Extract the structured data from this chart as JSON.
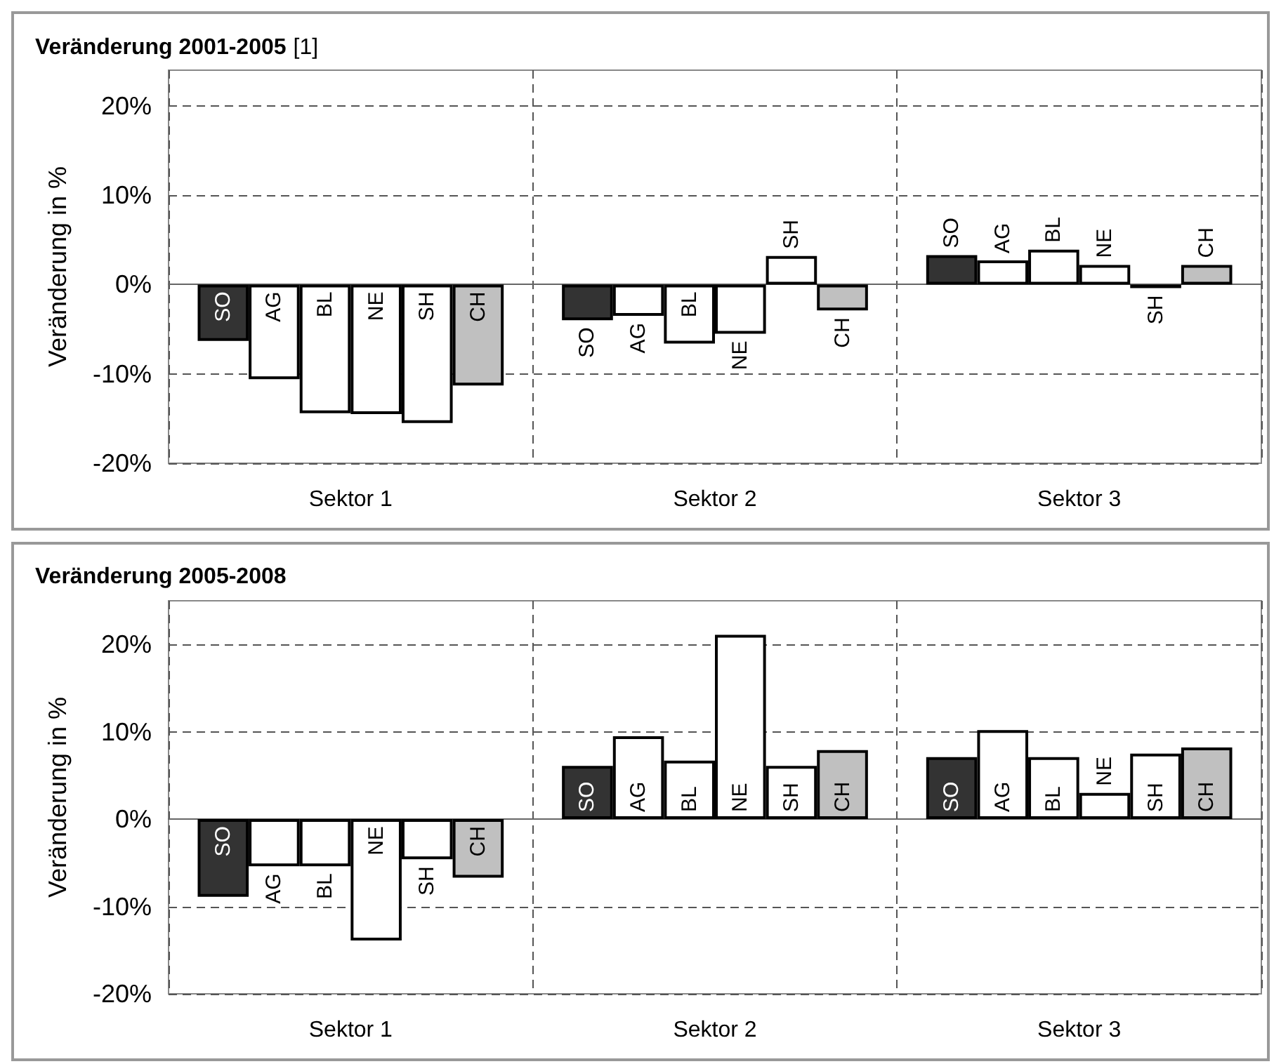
{
  "chart_data": [
    {
      "type": "bar",
      "title": "Veränderung 2001-2005",
      "annotations": [
        "[1]"
      ],
      "ylabel": "Veränderung in %",
      "categories": [
        "Sektor 1",
        "Sektor 2",
        "Sektor 3"
      ],
      "ylim": [
        -20,
        24
      ],
      "yticks": [
        {
          "value": -20,
          "label": "-20%"
        },
        {
          "value": -10,
          "label": "-10%"
        },
        {
          "value": 0,
          "label": "0%"
        },
        {
          "value": 10,
          "label": "10%"
        },
        {
          "value": 20,
          "label": "20%"
        }
      ],
      "grid": true,
      "series": [
        {
          "name": "SO",
          "color": "#333333",
          "values": [
            -6.3,
            -4.0,
            3.3
          ]
        },
        {
          "name": "AG",
          "color": "#ffffff",
          "values": [
            -10.6,
            -3.5,
            2.7
          ]
        },
        {
          "name": "BL",
          "color": "#ffffff",
          "values": [
            -14.4,
            -6.6,
            3.9
          ]
        },
        {
          "name": "NE",
          "color": "#ffffff",
          "values": [
            -14.5,
            -5.5,
            2.2
          ]
        },
        {
          "name": "SH",
          "color": "#ffffff",
          "values": [
            -15.5,
            3.2,
            -0.4
          ]
        },
        {
          "name": "CH",
          "color": "#c0c0c0",
          "values": [
            -11.3,
            -2.9,
            2.2
          ]
        }
      ]
    },
    {
      "type": "bar",
      "title": "Veränderung 2005-2008",
      "ylabel": "Veränderung in %",
      "categories": [
        "Sektor 1",
        "Sektor 2",
        "Sektor 3"
      ],
      "ylim": [
        -20,
        25
      ],
      "yticks": [
        {
          "value": -20,
          "label": "-20%"
        },
        {
          "value": -10,
          "label": "-10%"
        },
        {
          "value": 0,
          "label": "0%"
        },
        {
          "value": 10,
          "label": "10%"
        },
        {
          "value": 20,
          "label": "20%"
        }
      ],
      "grid": true,
      "series": [
        {
          "name": "SO",
          "color": "#333333",
          "values": [
            -8.9,
            6.1,
            7.1
          ]
        },
        {
          "name": "AG",
          "color": "#ffffff",
          "values": [
            -5.4,
            9.5,
            10.2
          ]
        },
        {
          "name": "BL",
          "color": "#ffffff",
          "values": [
            -5.4,
            6.7,
            7.1
          ]
        },
        {
          "name": "NE",
          "color": "#ffffff",
          "values": [
            -13.9,
            21.1,
            3.0
          ]
        },
        {
          "name": "SH",
          "color": "#ffffff",
          "values": [
            -4.6,
            6.1,
            7.5
          ]
        },
        {
          "name": "CH",
          "color": "#c0c0c0",
          "values": [
            -6.7,
            7.9,
            8.2
          ]
        }
      ]
    }
  ]
}
